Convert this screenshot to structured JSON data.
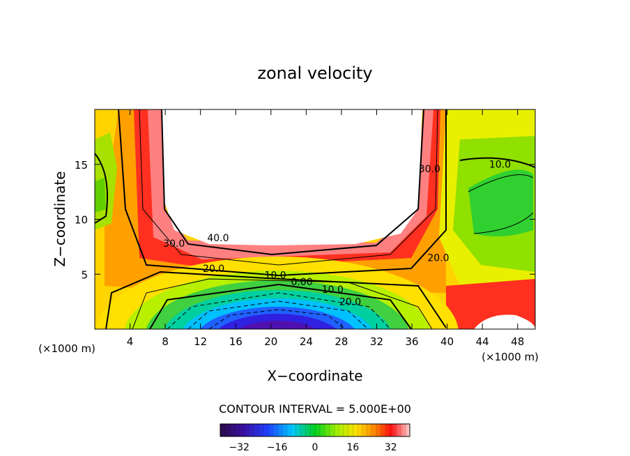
{
  "chart_data": {
    "type": "heatmap",
    "title": "zonal velocity",
    "xlabel": "X−coordinate",
    "ylabel": "Z−coordinate",
    "x_unit_left": "(×1000 m)",
    "x_unit_right": "(×1000 m)",
    "xlim": [
      0,
      50
    ],
    "ylim": [
      0,
      20
    ],
    "xticks": [
      4,
      8,
      12,
      16,
      20,
      24,
      28,
      32,
      36,
      40,
      44,
      48
    ],
    "yticks": [
      5,
      10,
      15
    ],
    "contour_interval_text": "CONTOUR INTERVAL = 5.000E+00",
    "contour_labels": [
      {
        "text": "40.0",
        "x": 14.0,
        "y": 8.0
      },
      {
        "text": "30.0",
        "x": 9.0,
        "y": 7.5
      },
      {
        "text": "20.0",
        "x": 13.5,
        "y": 5.2
      },
      {
        "text": "10.0",
        "x": 20.5,
        "y": 4.6
      },
      {
        "text": "0.00",
        "x": 23.5,
        "y": 4.0
      },
      {
        "text": "10.0",
        "x": 27.0,
        "y": 3.3
      },
      {
        "text": "20.0",
        "x": 29.0,
        "y": 2.2
      },
      {
        "text": "30.0",
        "x": 38.0,
        "y": 14.3
      },
      {
        "text": "20.0",
        "x": 39.0,
        "y": 6.2
      },
      {
        "text": "10.0",
        "x": 46.0,
        "y": 14.7
      }
    ],
    "colorbar": {
      "range": [
        -40,
        40
      ],
      "ticks": [
        -32,
        -16,
        0,
        16,
        32
      ],
      "tick_labels": [
        "−32",
        "−16",
        "0",
        "16",
        "32"
      ]
    }
  }
}
